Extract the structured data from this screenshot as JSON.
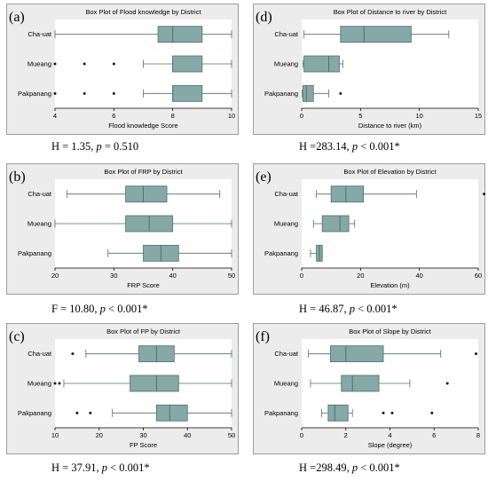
{
  "chart_data": [
    {
      "type": "box",
      "label": "(a)",
      "title": "Box Plot of Flood knowledge by District",
      "xlabel": "Flood knowledge Score",
      "categories": [
        "Cha-uat",
        "Mueang",
        "Pakpanang"
      ],
      "xlim": [
        4,
        10
      ],
      "xticks": [
        4,
        6,
        8,
        10
      ],
      "boxes": [
        {
          "group": "Cha-uat",
          "whisker_low": 4,
          "q1": 7.5,
          "median": 8,
          "q3": 9,
          "whisker_high": 10,
          "outliers": []
        },
        {
          "group": "Mueang",
          "whisker_low": 7,
          "q1": 8,
          "median": 8,
          "q3": 9,
          "whisker_high": 10,
          "outliers": [
            4,
            5,
            6
          ]
        },
        {
          "group": "Pakpanang",
          "whisker_low": 7,
          "q1": 8,
          "median": 8,
          "q3": 9,
          "whisker_high": 10,
          "outliers": [
            4,
            5,
            6
          ]
        }
      ],
      "stat": {
        "prefix": "H = 1.35, ",
        "p": "p",
        "suffix": " = 0.510"
      }
    },
    {
      "type": "box",
      "label": "(d)",
      "title": "Box Plot of Distance to river by District",
      "xlabel": "Distance to river (km)",
      "categories": [
        "Cha-uat",
        "Mueang",
        "Pakpanang"
      ],
      "xlim": [
        0,
        15
      ],
      "xticks": [
        0,
        5,
        10,
        15
      ],
      "boxes": [
        {
          "group": "Cha-uat",
          "whisker_low": 0.2,
          "q1": 3.3,
          "median": 5.3,
          "q3": 9.3,
          "whisker_high": 12.5,
          "outliers": []
        },
        {
          "group": "Mueang",
          "whisker_low": 0.1,
          "q1": 0.2,
          "median": 2.3,
          "q3": 3.2,
          "whisker_high": 3.5,
          "outliers": []
        },
        {
          "group": "Pakpanang",
          "whisker_low": 0.05,
          "q1": 0.1,
          "median": 0.4,
          "q3": 1.0,
          "whisker_high": 2.3,
          "outliers": [
            3.3
          ]
        }
      ],
      "stat": {
        "prefix": "H =283.14, ",
        "p": "p",
        "suffix": " < 0.001*"
      }
    },
    {
      "type": "box",
      "label": "(b)",
      "title": "Box Plot of FRP by District",
      "xlabel": "FRP Score",
      "categories": [
        "Cha-uat",
        "Mueang",
        "Pakpanang"
      ],
      "xlim": [
        20,
        50
      ],
      "xticks": [
        20,
        30,
        40,
        50
      ],
      "boxes": [
        {
          "group": "Cha-uat",
          "whisker_low": 22,
          "q1": 32,
          "median": 35,
          "q3": 39,
          "whisker_high": 48,
          "outliers": []
        },
        {
          "group": "Mueang",
          "whisker_low": 20,
          "q1": 32,
          "median": 36,
          "q3": 40,
          "whisker_high": 50,
          "outliers": []
        },
        {
          "group": "Pakpanang",
          "whisker_low": 29,
          "q1": 35,
          "median": 38,
          "q3": 41,
          "whisker_high": 50,
          "outliers": []
        }
      ],
      "stat": {
        "prefix": "F = 10.80, ",
        "p": "p",
        "suffix": " < 0.001*"
      }
    },
    {
      "type": "box",
      "label": "(e)",
      "title": "Box Plot of Elevation by District",
      "xlabel": "Elevation (m)",
      "categories": [
        "Cha-uat",
        "Mueang",
        "Pakpanang"
      ],
      "xlim": [
        0,
        60
      ],
      "xticks": [
        0,
        20,
        40,
        60
      ],
      "boxes": [
        {
          "group": "Cha-uat",
          "whisker_low": 5,
          "q1": 10,
          "median": 15,
          "q3": 21,
          "whisker_high": 39,
          "outliers": [
            62
          ]
        },
        {
          "group": "Mueang",
          "whisker_low": 4,
          "q1": 7,
          "median": 13,
          "q3": 16,
          "whisker_high": 18,
          "outliers": []
        },
        {
          "group": "Pakpanang",
          "whisker_low": 3,
          "q1": 5,
          "median": 6,
          "q3": 7,
          "whisker_high": 7,
          "outliers": []
        }
      ],
      "stat": {
        "prefix": "H = 46.87, ",
        "p": "p",
        "suffix": " < 0.001*"
      }
    },
    {
      "type": "box",
      "label": "(c)",
      "title": "Box Plot of FP by District",
      "xlabel": "FP Score",
      "categories": [
        "Cha-uat",
        "Mueang",
        "Pakpanang"
      ],
      "xlim": [
        10,
        50
      ],
      "xticks": [
        10,
        20,
        30,
        40,
        50
      ],
      "boxes": [
        {
          "group": "Cha-uat",
          "whisker_low": 17,
          "q1": 29,
          "median": 33,
          "q3": 37,
          "whisker_high": 50,
          "outliers": [
            14
          ]
        },
        {
          "group": "Mueang",
          "whisker_low": 12,
          "q1": 27,
          "median": 33,
          "q3": 38,
          "whisker_high": 50,
          "outliers": [
            10,
            11
          ]
        },
        {
          "group": "Pakpanang",
          "whisker_low": 23,
          "q1": 33,
          "median": 36,
          "q3": 40,
          "whisker_high": 50,
          "outliers": [
            15,
            18
          ]
        }
      ],
      "stat": {
        "prefix": "H = 37.91, ",
        "p": "p",
        "suffix": " < 0.001*"
      }
    },
    {
      "type": "box",
      "label": "(f)",
      "title": "Box Plot of Slope by District",
      "xlabel": "Slope (degree)",
      "categories": [
        "Cha-uat",
        "Mueang",
        "Pakpanang"
      ],
      "xlim": [
        0,
        8
      ],
      "xticks": [
        0,
        2,
        4,
        6,
        8
      ],
      "boxes": [
        {
          "group": "Cha-uat",
          "whisker_low": 0.3,
          "q1": 1.3,
          "median": 2.0,
          "q3": 3.7,
          "whisker_high": 6.3,
          "outliers": [
            7.9
          ]
        },
        {
          "group": "Mueang",
          "whisker_low": 0.4,
          "q1": 1.8,
          "median": 2.3,
          "q3": 3.5,
          "whisker_high": 4.9,
          "outliers": [
            6.6
          ]
        },
        {
          "group": "Pakpanang",
          "whisker_low": 0.9,
          "q1": 1.2,
          "median": 1.5,
          "q3": 2.1,
          "whisker_high": 2.3,
          "outliers": [
            3.7,
            4.1,
            5.9
          ]
        }
      ],
      "stat": {
        "prefix": "H =298.49, ",
        "p": "p",
        "suffix": " < 0.001*"
      }
    }
  ],
  "colors": {
    "box_fill": "#86a8a7",
    "box_stroke": "#4f6f6e",
    "whisker": "#4f6f6e",
    "panel_bg": "#ececec",
    "panel_border": "#9e9e9e",
    "plot_bg": "#ffffff",
    "text": "#000000"
  }
}
